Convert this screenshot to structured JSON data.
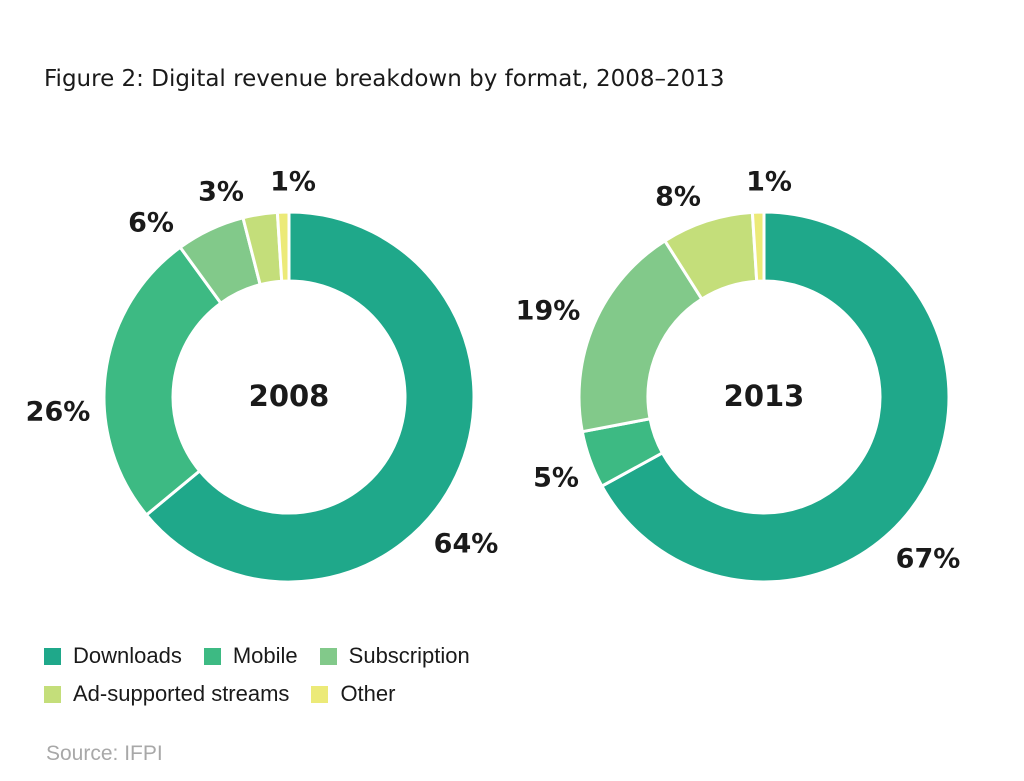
{
  "title": "Figure 2: Digital revenue breakdown by format, 2008–2013",
  "source": "Source: IFPI",
  "colors": {
    "downloads": "#1fa88a",
    "mobile": "#3dba83",
    "subscription": "#82c98a",
    "ad_supported": "#c4de7a",
    "other": "#ecea78"
  },
  "legend": {
    "rows": [
      [
        {
          "label": "Downloads",
          "color": "#1fa88a"
        },
        {
          "label": "Mobile",
          "color": "#3dba83"
        },
        {
          "label": "Subscription",
          "color": "#82c98a"
        }
      ],
      [
        {
          "label": "Ad-supported streams",
          "color": "#c4de7a"
        },
        {
          "label": "Other",
          "color": "#ecea78"
        }
      ]
    ]
  },
  "chart_data": [
    {
      "type": "pie",
      "subtype": "donut",
      "center_label": "2008",
      "categories": [
        "Downloads",
        "Mobile",
        "Subscription",
        "Ad-supported streams",
        "Other"
      ],
      "values": [
        64,
        26,
        6,
        3,
        1
      ],
      "labels": [
        "64%",
        "26%",
        "6%",
        "3%",
        "1%"
      ],
      "colors": [
        "#1fa88a",
        "#3dba83",
        "#82c98a",
        "#c4de7a",
        "#ecea78"
      ]
    },
    {
      "type": "pie",
      "subtype": "donut",
      "center_label": "2013",
      "categories": [
        "Downloads",
        "Mobile",
        "Subscription",
        "Ad-supported streams",
        "Other"
      ],
      "values": [
        67,
        5,
        19,
        8,
        1
      ],
      "labels": [
        "67%",
        "5%",
        "19%",
        "8%",
        "1%"
      ],
      "colors": [
        "#1fa88a",
        "#3dba83",
        "#82c98a",
        "#c4de7a",
        "#ecea78"
      ]
    }
  ]
}
